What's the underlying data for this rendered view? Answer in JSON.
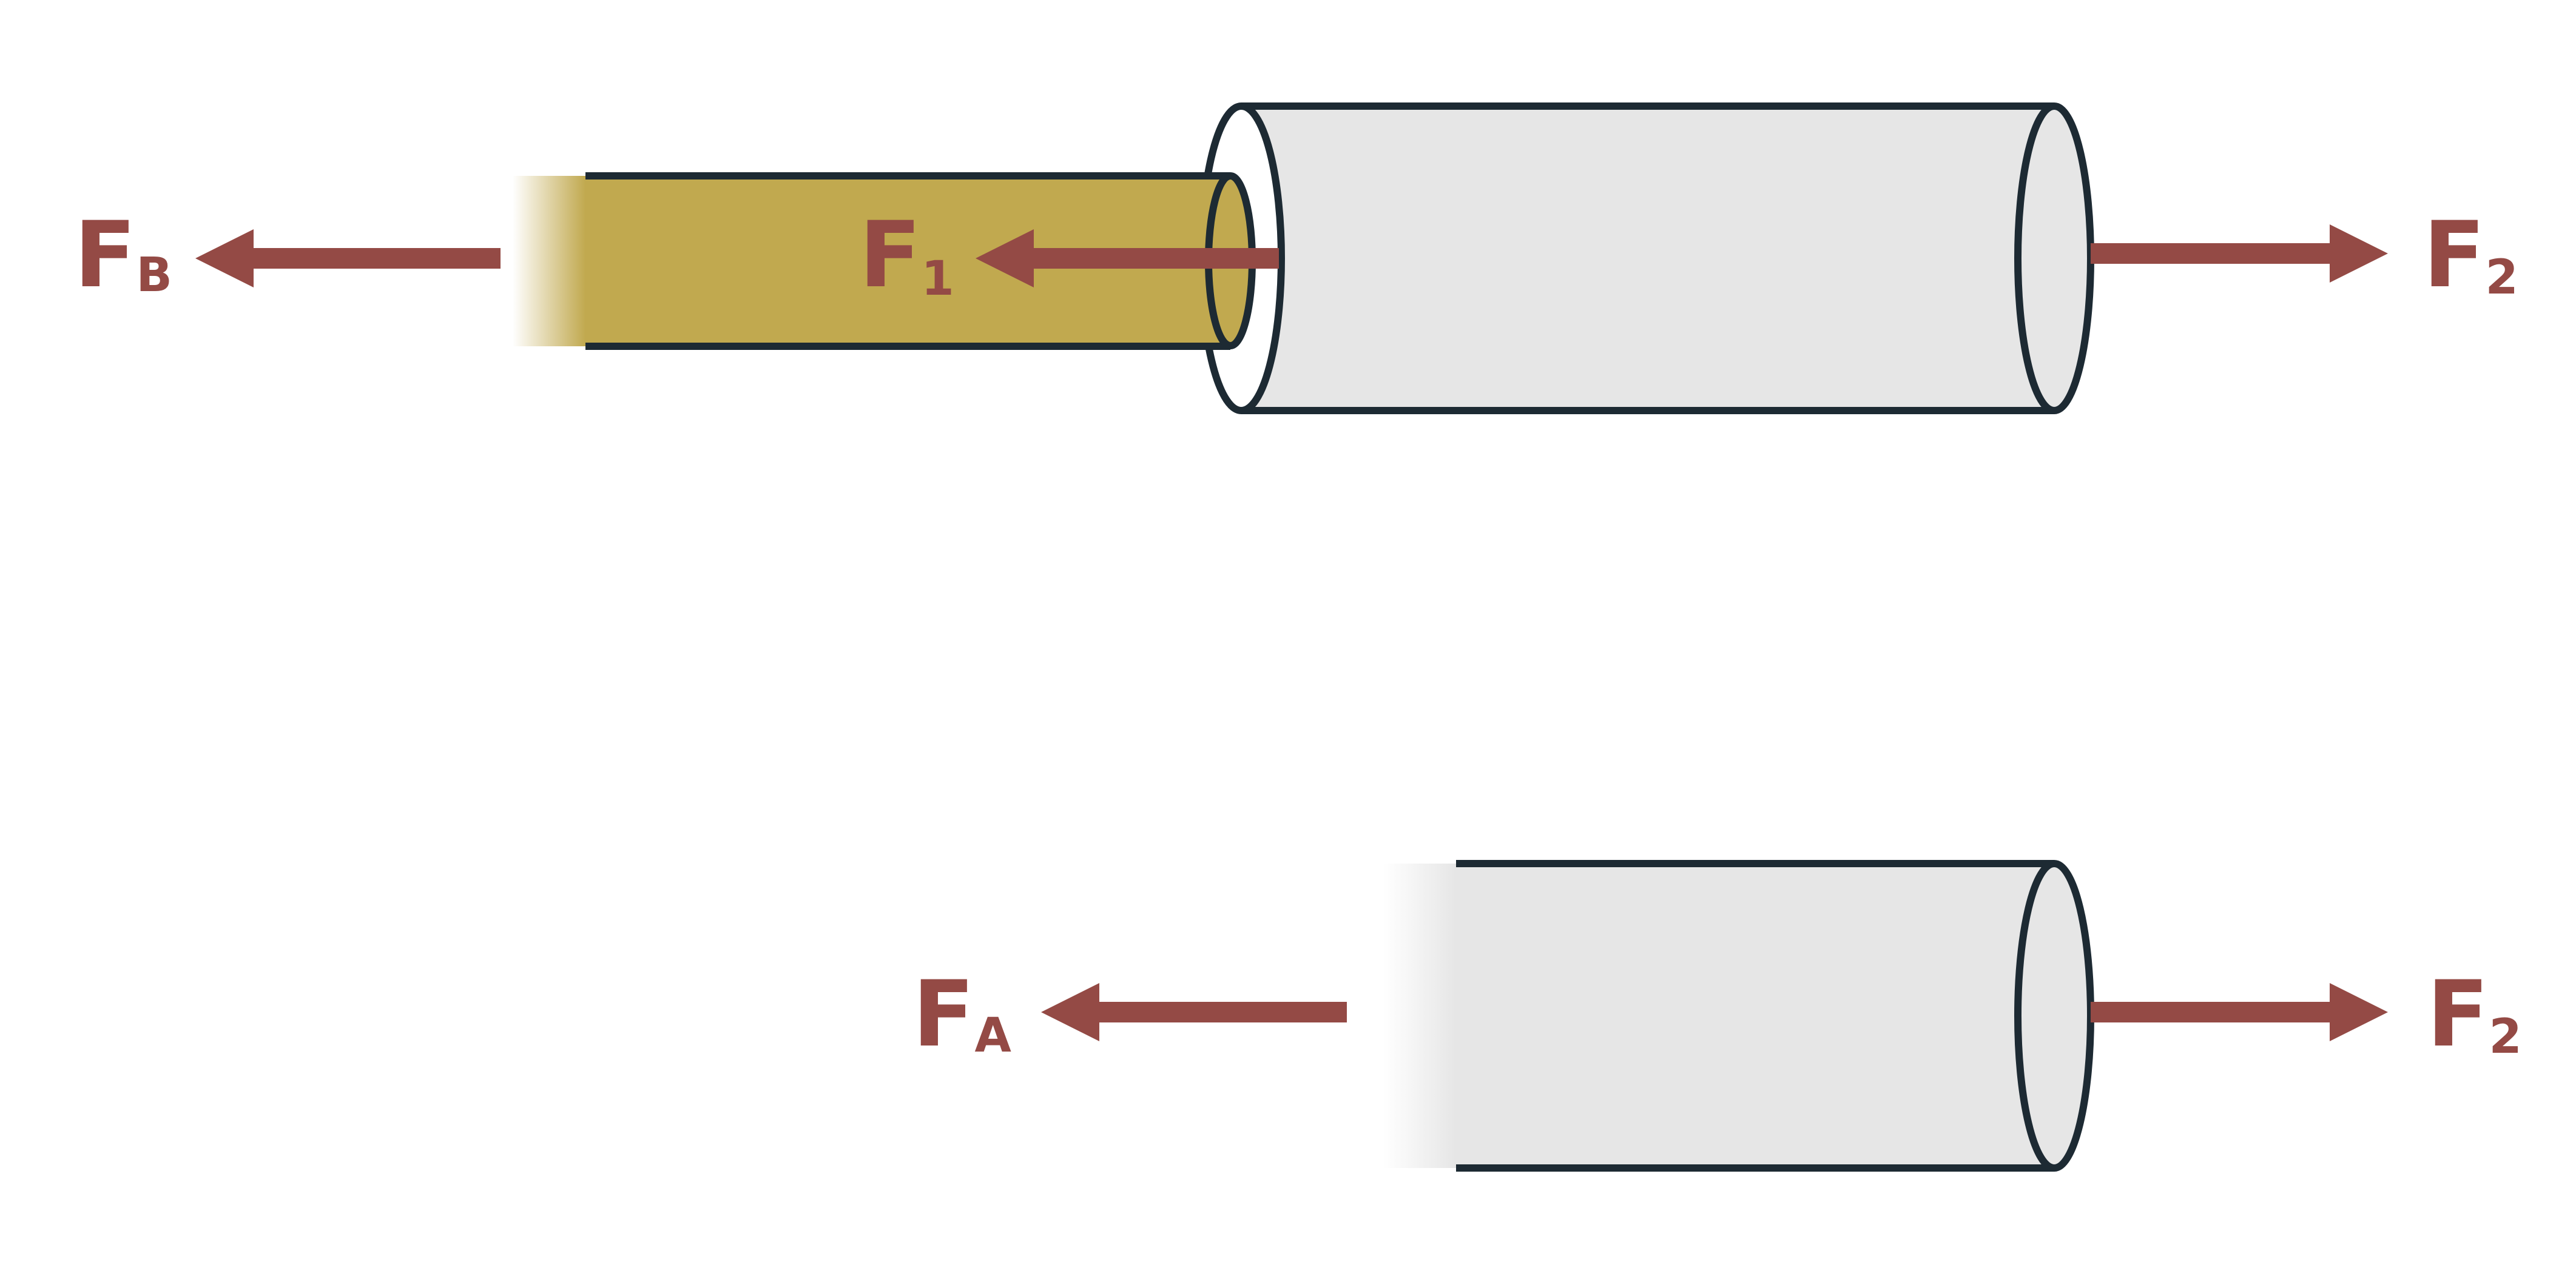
{
  "colors": {
    "force": "#944a45",
    "outline": "#1d2a33",
    "rod": "#c1a94f",
    "tube": "#e6e6e6",
    "background": "#ffffff"
  },
  "diagram": {
    "top": {
      "label_FB": {
        "main": "F",
        "sub": "B"
      },
      "label_F1": {
        "main": "F",
        "sub": "1"
      },
      "label_F2": {
        "main": "F",
        "sub": "2"
      }
    },
    "bottom": {
      "label_FA": {
        "main": "F",
        "sub": "A"
      },
      "label_F2": {
        "main": "F",
        "sub": "2"
      }
    }
  }
}
